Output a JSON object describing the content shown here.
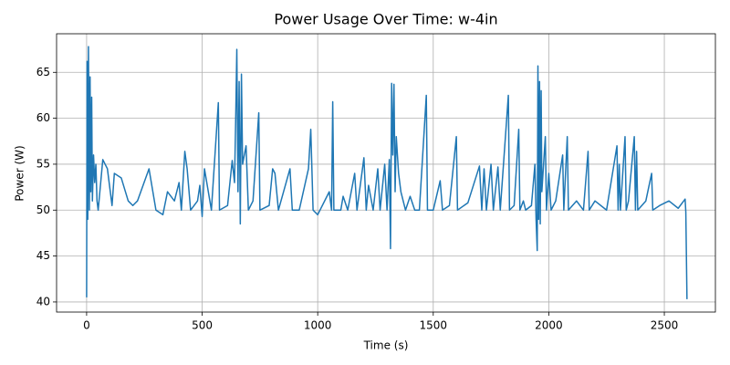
{
  "chart_data": {
    "type": "line",
    "title": "Power Usage Over Time: w-4in",
    "x_label": "Time (s)",
    "y_label": "Power (W)",
    "x": [
      0,
      2,
      5,
      8,
      12,
      15,
      18,
      22,
      25,
      30,
      35,
      40,
      45,
      50,
      70,
      90,
      110,
      120,
      150,
      180,
      200,
      220,
      270,
      300,
      330,
      350,
      380,
      400,
      410,
      425,
      435,
      450,
      480,
      490,
      500,
      510,
      540,
      570,
      575,
      610,
      630,
      640,
      645,
      650,
      655,
      660,
      665,
      670,
      675,
      690,
      700,
      720,
      745,
      750,
      790,
      805,
      815,
      830,
      880,
      890,
      920,
      960,
      970,
      980,
      1000,
      1050,
      1060,
      1065,
      1070,
      1100,
      1110,
      1130,
      1160,
      1170,
      1200,
      1210,
      1220,
      1240,
      1260,
      1270,
      1290,
      1300,
      1310,
      1315,
      1320,
      1325,
      1330,
      1335,
      1340,
      1350,
      1360,
      1380,
      1400,
      1420,
      1440,
      1470,
      1475,
      1500,
      1530,
      1540,
      1570,
      1600,
      1605,
      1650,
      1700,
      1710,
      1720,
      1730,
      1750,
      1760,
      1780,
      1790,
      1825,
      1830,
      1850,
      1870,
      1875,
      1890,
      1900,
      1925,
      1940,
      1945,
      1950,
      1953,
      1956,
      1960,
      1963,
      1967,
      1970,
      1985,
      1990,
      2000,
      2010,
      2030,
      2060,
      2065,
      2080,
      2085,
      2120,
      2150,
      2170,
      2175,
      2200,
      2250,
      2295,
      2300,
      2305,
      2310,
      2330,
      2335,
      2345,
      2370,
      2375,
      2380,
      2385,
      2420,
      2445,
      2450,
      2480,
      2520,
      2560,
      2590,
      2593,
      2598
    ],
    "values": [
      40.5,
      66.2,
      49,
      67.8,
      50,
      64.5,
      52,
      62.3,
      51,
      56,
      53,
      55,
      51,
      50,
      55.5,
      54.5,
      50.5,
      54,
      53.5,
      51,
      50.5,
      51,
      54.5,
      50,
      49.5,
      52,
      51,
      53,
      50,
      56.4,
      54.5,
      50,
      51,
      52.7,
      49.3,
      54.5,
      50,
      61.7,
      50,
      50.5,
      55.4,
      53,
      59.7,
      67.5,
      52,
      64,
      48.5,
      64.8,
      55,
      57,
      50,
      51,
      60.6,
      50,
      50.5,
      54.5,
      54,
      50,
      54.5,
      50,
      50,
      54.5,
      58.8,
      50,
      49.5,
      52,
      50,
      61.8,
      50,
      50,
      51.5,
      50,
      54,
      50,
      55.7,
      50,
      52.7,
      50,
      54.5,
      50,
      55,
      50,
      55.5,
      45.8,
      63.8,
      56,
      63.7,
      52,
      58,
      54,
      52,
      50,
      51.5,
      50,
      50,
      62.5,
      50,
      50,
      53.2,
      50,
      50.5,
      58,
      50,
      50.8,
      54.8,
      50,
      54.5,
      50,
      55,
      50,
      54.7,
      50,
      62.5,
      50,
      50.5,
      58.8,
      50,
      51,
      50,
      50.5,
      55,
      49,
      45.6,
      65.7,
      49,
      64,
      48.5,
      63,
      52,
      58,
      50,
      54,
      50,
      51,
      56,
      50,
      58,
      50,
      51,
      50,
      56.4,
      50,
      51,
      50,
      57,
      50,
      55,
      50,
      58,
      50,
      51,
      58,
      50,
      56.4,
      50,
      51,
      54,
      50,
      50.5,
      51,
      50.2,
      51.2,
      49.8,
      40.3
    ],
    "color": "#1f77b4",
    "xlim": [
      -130,
      2721
    ],
    "xticks": [
      0,
      500,
      1000,
      1500,
      2000,
      2500
    ],
    "ylim": [
      38.9,
      69.2
    ],
    "yticks": [
      40,
      45,
      50,
      55,
      60,
      65
    ],
    "grid": true
  }
}
